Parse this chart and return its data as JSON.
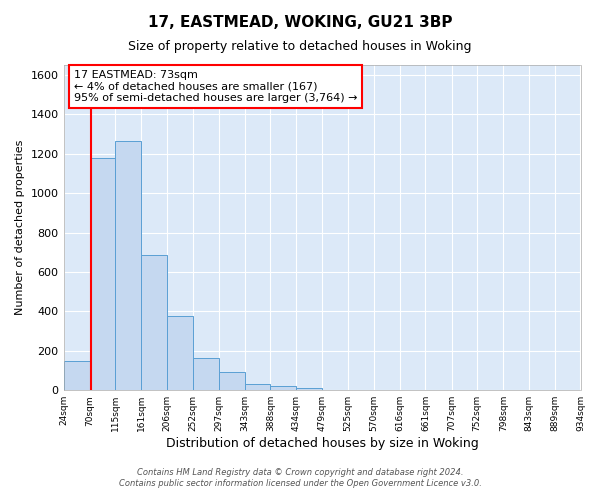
{
  "title": "17, EASTMEAD, WOKING, GU21 3BP",
  "subtitle": "Size of property relative to detached houses in Woking",
  "xlabel": "Distribution of detached houses by size in Woking",
  "ylabel": "Number of detached properties",
  "bar_values": [
    150,
    1180,
    1265,
    685,
    375,
    165,
    90,
    32,
    22,
    10,
    0,
    0,
    0,
    0,
    0,
    0,
    0,
    0,
    0,
    0
  ],
  "bin_edges": [
    24,
    70,
    115,
    161,
    206,
    252,
    297,
    343,
    388,
    434,
    479,
    525,
    570,
    616,
    661,
    707,
    752,
    798,
    843,
    889,
    934
  ],
  "tick_labels": [
    "24sqm",
    "70sqm",
    "115sqm",
    "161sqm",
    "206sqm",
    "252sqm",
    "297sqm",
    "343sqm",
    "388sqm",
    "434sqm",
    "479sqm",
    "525sqm",
    "570sqm",
    "616sqm",
    "661sqm",
    "707sqm",
    "752sqm",
    "798sqm",
    "843sqm",
    "889sqm",
    "934sqm"
  ],
  "bar_color": "#c5d8f0",
  "bar_edge_color": "#5a9fd4",
  "fig_background_color": "#ffffff",
  "plot_background_color": "#dce9f8",
  "grid_color": "#ffffff",
  "red_line_x": 73,
  "annotation_line1": "17 EASTMEAD: 73sqm",
  "annotation_line2": "← 4% of detached houses are smaller (167)",
  "annotation_line3": "95% of semi-detached houses are larger (3,764) →",
  "ylim": [
    0,
    1650
  ],
  "yticks": [
    0,
    200,
    400,
    600,
    800,
    1000,
    1200,
    1400,
    1600
  ],
  "footer_line1": "Contains HM Land Registry data © Crown copyright and database right 2024.",
  "footer_line2": "Contains public sector information licensed under the Open Government Licence v3.0."
}
